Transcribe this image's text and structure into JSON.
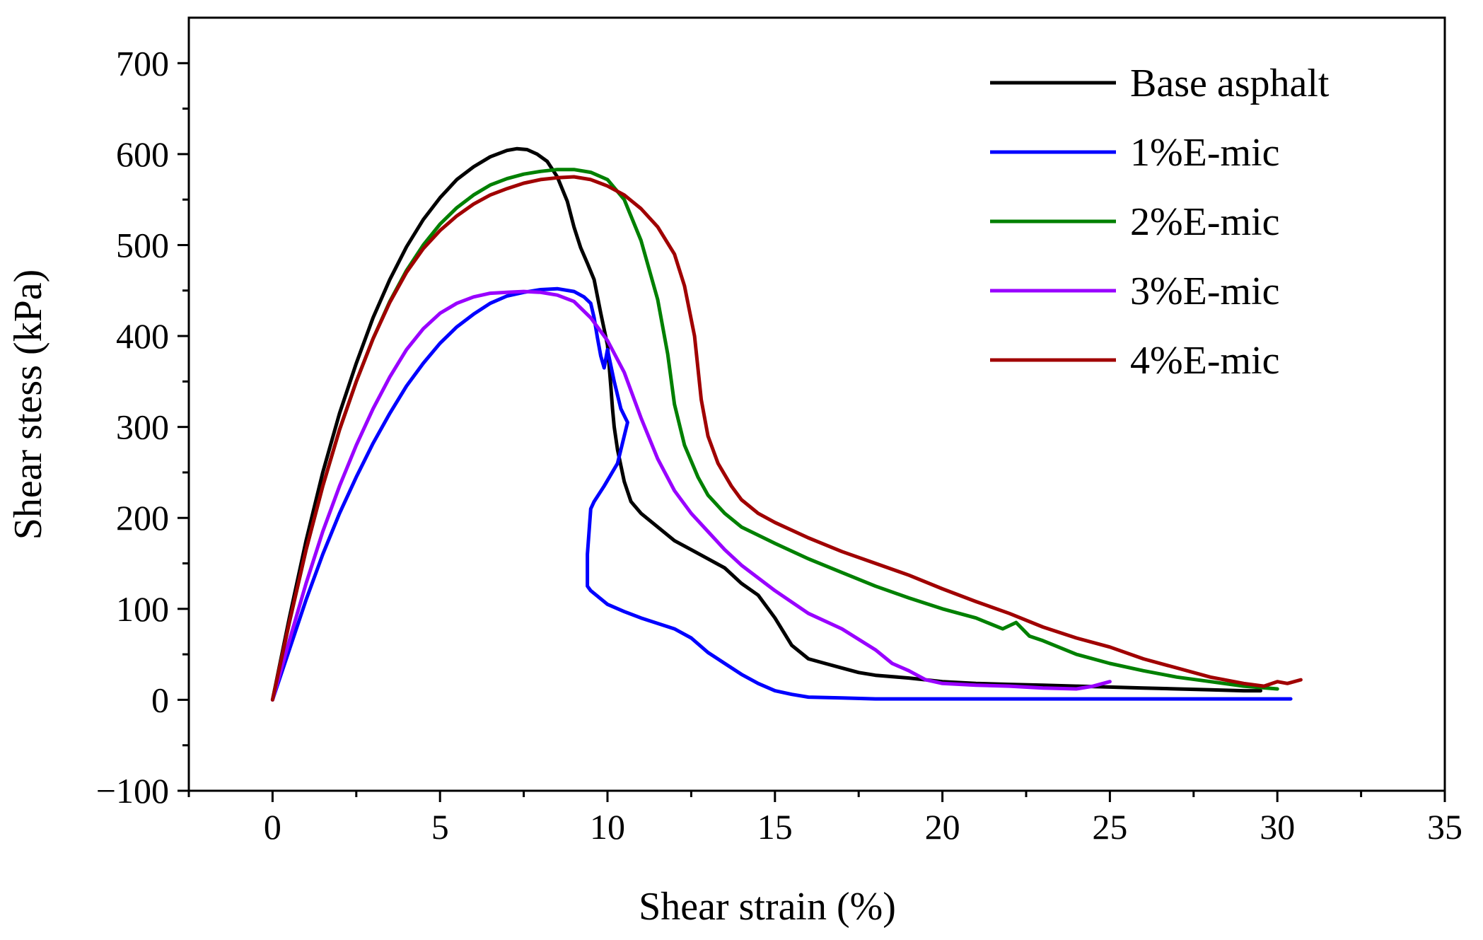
{
  "chart_data": {
    "type": "line",
    "xlabel": "Shear strain (%)",
    "ylabel": "Shear stess (kPa)",
    "xlim": [
      -2.5,
      35
    ],
    "ylim": [
      -100,
      750
    ],
    "xticks": [
      0,
      5,
      10,
      15,
      20,
      25,
      30,
      35
    ],
    "yticks": [
      -100,
      0,
      100,
      200,
      300,
      400,
      500,
      600,
      700
    ],
    "xtick_labels": [
      "0",
      "5",
      "10",
      "15",
      "20",
      "25",
      "30",
      "35"
    ],
    "ytick_labels": [
      "−100",
      "0",
      "100",
      "200",
      "300",
      "400",
      "500",
      "600",
      "700"
    ],
    "grid": false,
    "legend_position": "top-right",
    "series": [
      {
        "name": "Base asphalt",
        "color": "#000000",
        "x": [
          0,
          0.5,
          1,
          1.5,
          2,
          2.5,
          3,
          3.5,
          4,
          4.5,
          5,
          5.5,
          6,
          6.5,
          7,
          7.3,
          7.6,
          7.9,
          8.2,
          8.5,
          8.8,
          9.0,
          9.2,
          9.4,
          9.6,
          9.8,
          10.0,
          10.1,
          10.15,
          10.2,
          10.3,
          10.5,
          10.7,
          11.0,
          11.5,
          12,
          12.5,
          13,
          13.5,
          14,
          14.5,
          15,
          15.5,
          16,
          16.5,
          17,
          17.5,
          18,
          19,
          20,
          21,
          22,
          23,
          24,
          25,
          26,
          27,
          28,
          29,
          29.5
        ],
        "y": [
          0,
          90,
          175,
          250,
          315,
          370,
          420,
          462,
          498,
          528,
          552,
          572,
          586,
          597,
          604,
          606,
          605,
          600,
          592,
          575,
          548,
          520,
          497,
          480,
          462,
          425,
          390,
          345,
          320,
          300,
          275,
          240,
          218,
          205,
          190,
          175,
          165,
          155,
          145,
          128,
          115,
          90,
          60,
          45,
          40,
          35,
          30,
          27,
          24,
          20,
          18,
          17,
          16,
          15,
          14,
          13,
          12,
          11,
          10,
          10
        ]
      },
      {
        "name": "1%E-mic",
        "color": "#0000ff",
        "x": [
          0,
          0.5,
          1,
          1.5,
          2,
          2.5,
          3,
          3.5,
          4,
          4.5,
          5,
          5.5,
          6,
          6.5,
          7,
          7.5,
          8,
          8.5,
          9.0,
          9.3,
          9.5,
          9.6,
          9.7,
          9.8,
          9.9,
          10.0,
          10.2,
          10.4,
          10.6,
          10.3,
          9.9,
          9.6,
          9.5,
          9.4,
          9.4,
          9.5,
          10,
          10.5,
          11,
          12,
          12.5,
          13,
          13.5,
          14,
          14.5,
          15,
          15.5,
          16,
          17,
          18,
          20,
          22,
          24,
          26,
          28,
          30,
          30.4
        ],
        "y": [
          0,
          55,
          110,
          160,
          205,
          245,
          282,
          315,
          345,
          370,
          392,
          410,
          424,
          436,
          444,
          448,
          451,
          452,
          449,
          443,
          436,
          420,
          398,
          378,
          365,
          385,
          350,
          320,
          305,
          260,
          235,
          218,
          210,
          160,
          125,
          120,
          105,
          97,
          90,
          78,
          68,
          52,
          40,
          28,
          18,
          10,
          6,
          3,
          2,
          1,
          1,
          1,
          1,
          1,
          1,
          1,
          1
        ]
      },
      {
        "name": "2%E-mic",
        "color": "#008000",
        "x": [
          0,
          0.5,
          1,
          1.5,
          2,
          2.5,
          3,
          3.5,
          4,
          4.5,
          5,
          5.5,
          6,
          6.5,
          7,
          7.5,
          8,
          8.5,
          9,
          9.5,
          10,
          10.5,
          11,
          11.5,
          11.8,
          12,
          12.3,
          12.7,
          13,
          13.5,
          14,
          15,
          16,
          17,
          18,
          19,
          20,
          21,
          21.8,
          22.2,
          22.6,
          23,
          24,
          25,
          26,
          27,
          28,
          29,
          30
        ],
        "y": [
          0,
          85,
          165,
          235,
          297,
          350,
          397,
          438,
          472,
          500,
          523,
          541,
          555,
          566,
          573,
          578,
          581,
          583,
          583,
          580,
          572,
          550,
          505,
          440,
          380,
          325,
          280,
          245,
          225,
          205,
          190,
          172,
          155,
          140,
          125,
          112,
          100,
          90,
          78,
          85,
          70,
          65,
          50,
          40,
          32,
          25,
          20,
          15,
          12
        ]
      },
      {
        "name": "3%E-mic",
        "color": "#9900ff",
        "x": [
          0,
          0.5,
          1,
          1.5,
          2,
          2.5,
          3,
          3.5,
          4,
          4.5,
          5,
          5.5,
          6,
          6.5,
          7,
          7.5,
          8,
          8.5,
          9,
          9.5,
          10,
          10.5,
          11,
          11.5,
          12,
          12.5,
          13,
          13.5,
          14,
          15,
          16,
          17,
          18,
          18.5,
          19,
          19.5,
          20,
          21,
          22,
          23,
          24,
          24.5,
          25
        ],
        "y": [
          0,
          65,
          128,
          185,
          235,
          280,
          320,
          355,
          385,
          408,
          425,
          436,
          443,
          447,
          448,
          449,
          448,
          445,
          438,
          420,
          395,
          360,
          310,
          265,
          230,
          205,
          185,
          165,
          148,
          120,
          95,
          78,
          55,
          40,
          32,
          22,
          18,
          16,
          15,
          13,
          12,
          15,
          20
        ]
      },
      {
        "name": "4%E-mic",
        "color": "#a00000",
        "x": [
          0,
          0.5,
          1,
          1.5,
          2,
          2.5,
          3,
          3.5,
          4,
          4.5,
          5,
          5.5,
          6,
          6.5,
          7,
          7.5,
          8,
          8.5,
          9,
          9.5,
          10,
          10.5,
          11,
          11.5,
          12,
          12.3,
          12.6,
          12.8,
          13,
          13.3,
          13.7,
          14,
          14.5,
          15,
          16,
          17,
          18,
          19,
          20,
          21,
          22,
          23,
          24,
          25,
          26,
          27,
          28,
          29,
          29.6,
          30,
          30.3,
          30.7
        ],
        "y": [
          0,
          85,
          165,
          235,
          297,
          350,
          397,
          437,
          470,
          496,
          516,
          532,
          545,
          555,
          562,
          568,
          572,
          574,
          575,
          572,
          565,
          555,
          540,
          520,
          490,
          455,
          400,
          330,
          290,
          260,
          235,
          220,
          205,
          195,
          178,
          163,
          150,
          137,
          122,
          108,
          95,
          80,
          68,
          58,
          45,
          35,
          25,
          18,
          15,
          20,
          18,
          22
        ]
      }
    ]
  }
}
